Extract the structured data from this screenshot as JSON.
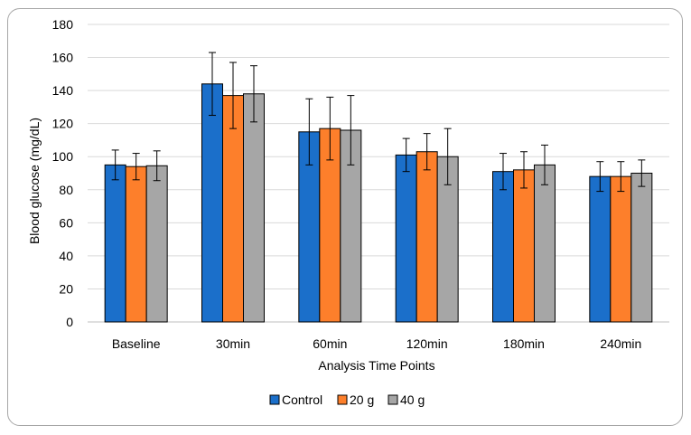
{
  "chart_data": {
    "type": "bar",
    "title": "",
    "xlabel": "Analysis Time Points",
    "ylabel": "Blood glucose (mg/dL)",
    "ylim": [
      0,
      180
    ],
    "yticks": [
      0,
      20,
      40,
      60,
      80,
      100,
      120,
      140,
      160,
      180
    ],
    "grid": true,
    "legend_position": "bottom",
    "categories": [
      "Baseline",
      "30min",
      "60min",
      "120min",
      "180min",
      "240min"
    ],
    "series": [
      {
        "name": "Control",
        "color": "#1b6fca",
        "values": [
          95,
          144,
          115,
          101,
          91,
          88
        ],
        "errors": [
          9,
          19,
          20,
          10,
          11,
          9
        ]
      },
      {
        "name": "20 g",
        "color": "#fd7f2b",
        "values": [
          94,
          137,
          117,
          103,
          92,
          88
        ],
        "errors": [
          8,
          20,
          19,
          11,
          11,
          9
        ]
      },
      {
        "name": "40 g",
        "color": "#a6a6a6",
        "values": [
          94.5,
          138,
          116,
          100,
          95,
          90
        ],
        "errors": [
          9,
          17,
          21,
          17,
          12,
          8
        ]
      }
    ]
  }
}
